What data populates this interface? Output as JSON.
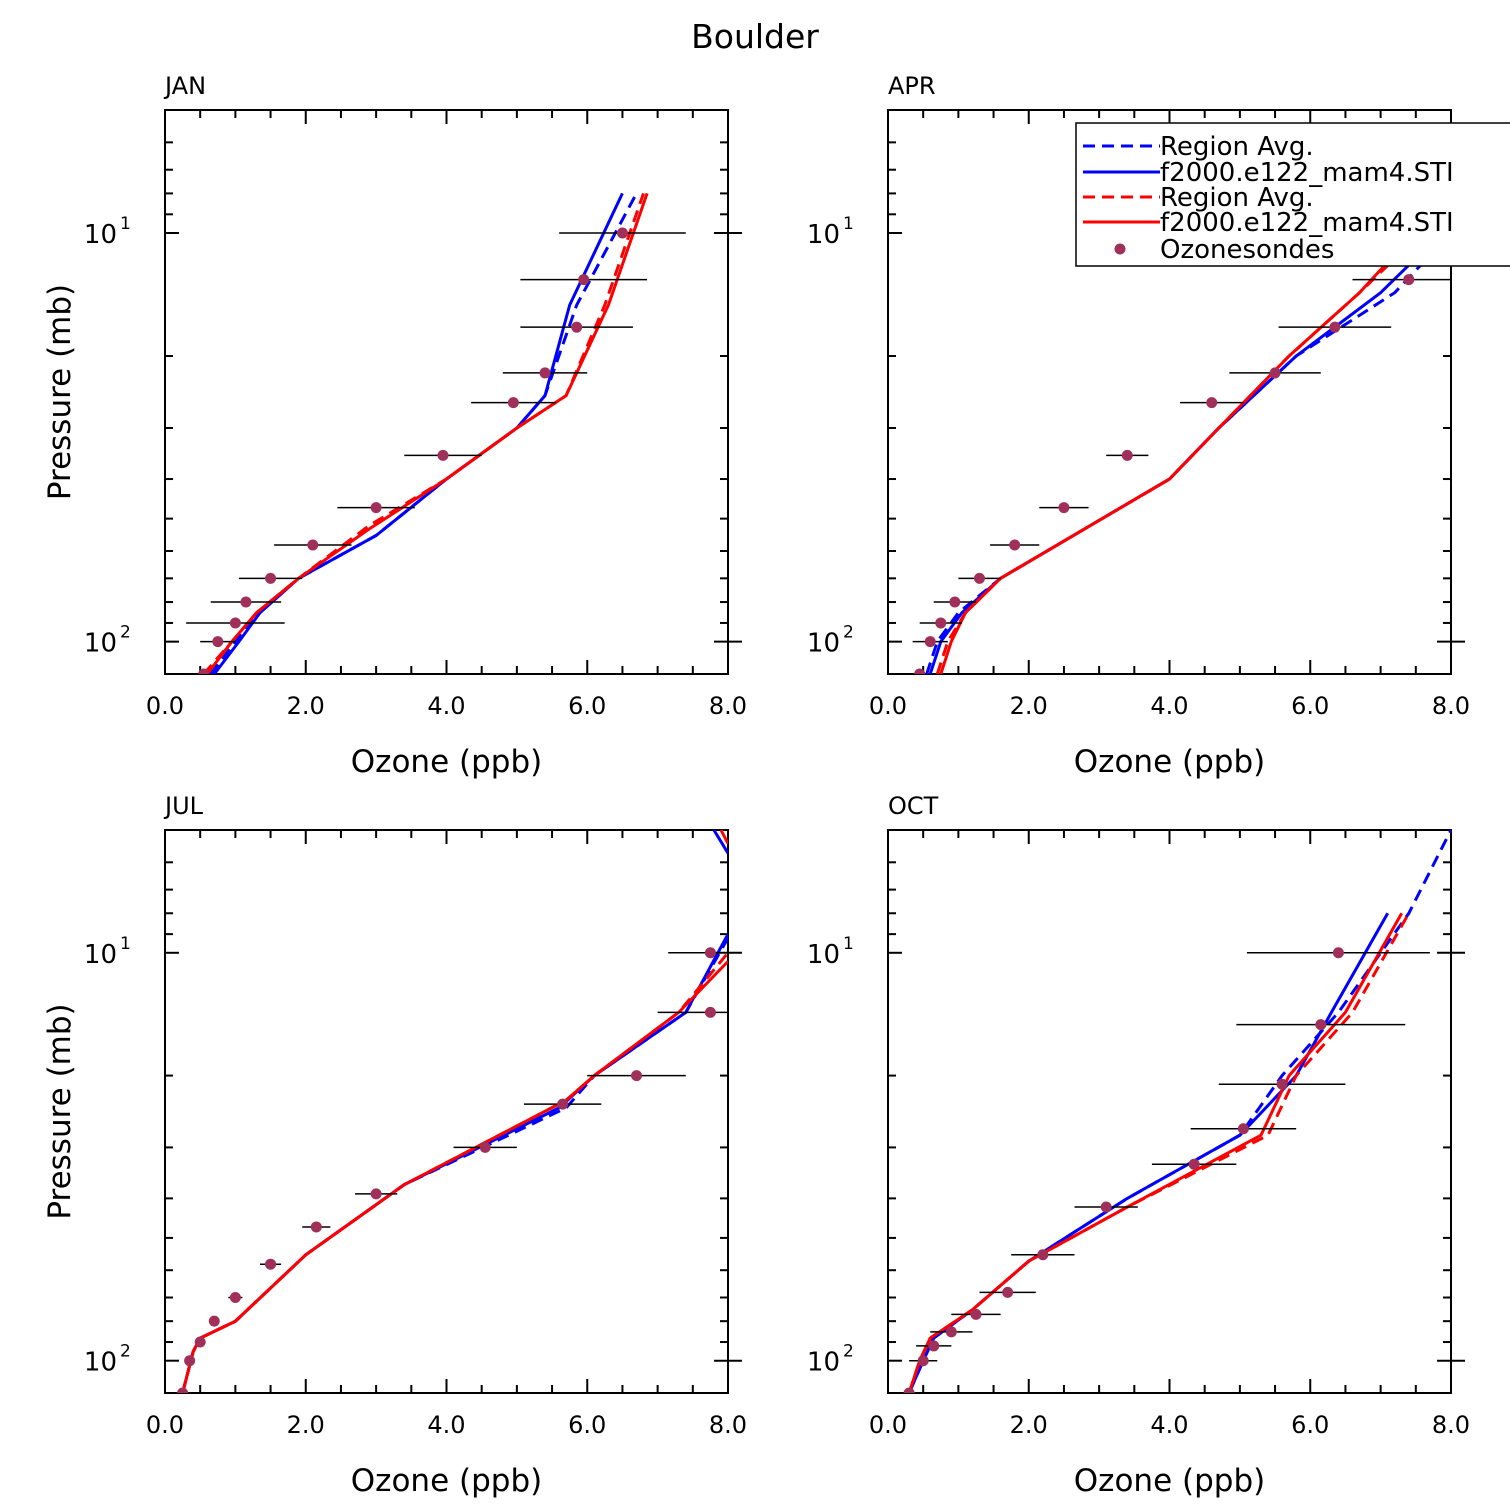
{
  "figure_title": "Boulder",
  "colors": {
    "model1": "#0000ff",
    "model2": "#ff0000",
    "obs": "#a0305a",
    "axis": "#000000"
  },
  "legend": {
    "entries": [
      {
        "label": "Region Avg.",
        "color": "#0000ff",
        "style": "dashed"
      },
      {
        "label": "f2000.e122_mam4.STI",
        "color": "#0000ff",
        "style": "solid"
      },
      {
        "label": "Region Avg.",
        "color": "#ff0000",
        "style": "dashed"
      },
      {
        "label": "f2000.e122_mam4.STI",
        "color": "#ff0000",
        "style": "solid"
      },
      {
        "label": "Ozonesondes",
        "color": "#a0305a",
        "style": "marker"
      }
    ]
  },
  "chart_data": [
    {
      "type": "line",
      "title": "JAN",
      "xlabel": "Ozone (ppb)",
      "ylabel": "Pressure (mb)",
      "xlim": [
        0,
        8
      ],
      "ylim": [
        120,
        5
      ],
      "yscale": "log",
      "xticks": [
        "0.0",
        "2.0",
        "4.0",
        "6.0",
        "8.0"
      ],
      "yticks": [
        {
          "base": "10",
          "exp": "1",
          "value": 10
        },
        {
          "base": "10",
          "exp": "2",
          "value": 100
        }
      ],
      "series": [
        {
          "name": "Region Avg.",
          "color": "#0000ff",
          "style": "dashed",
          "points": [
            [
              0.65,
              120
            ],
            [
              1.0,
              100
            ],
            [
              1.3,
              85
            ],
            [
              1.9,
              70
            ],
            [
              3.0,
              55
            ],
            [
              4.0,
              40
            ],
            [
              5.0,
              30
            ],
            [
              5.4,
              25
            ],
            [
              5.85,
              15
            ],
            [
              6.7,
              8
            ]
          ]
        },
        {
          "name": "f2000.e122_mam4.STI",
          "color": "#0000ff",
          "style": "solid",
          "points": [
            [
              0.7,
              120
            ],
            [
              1.05,
              100
            ],
            [
              1.35,
              85
            ],
            [
              1.9,
              70
            ],
            [
              3.0,
              55
            ],
            [
              4.0,
              40
            ],
            [
              5.0,
              30
            ],
            [
              5.4,
              25
            ],
            [
              5.75,
              15
            ],
            [
              6.5,
              8
            ]
          ]
        },
        {
          "name": "Region Avg.",
          "color": "#ff0000",
          "style": "dashed",
          "points": [
            [
              0.55,
              120
            ],
            [
              0.95,
              100
            ],
            [
              1.3,
              85
            ],
            [
              1.9,
              70
            ],
            [
              2.9,
              52
            ],
            [
              4.0,
              40
            ],
            [
              5.0,
              30
            ],
            [
              5.7,
              25
            ],
            [
              6.25,
              15
            ],
            [
              6.8,
              8
            ]
          ]
        },
        {
          "name": "f2000.e122_mam4.STI",
          "color": "#ff0000",
          "style": "solid",
          "points": [
            [
              0.6,
              120
            ],
            [
              0.95,
              100
            ],
            [
              1.3,
              85
            ],
            [
              1.9,
              70
            ],
            [
              2.9,
              53
            ],
            [
              4.0,
              40
            ],
            [
              5.0,
              30
            ],
            [
              5.7,
              25
            ],
            [
              6.3,
              15
            ],
            [
              6.85,
              8
            ]
          ]
        }
      ],
      "obs": [
        [
          0.55,
          120,
          0.05
        ],
        [
          0.75,
          100,
          0.25
        ],
        [
          1.0,
          90,
          0.7
        ],
        [
          1.15,
          80,
          0.5
        ],
        [
          1.5,
          70,
          0.45
        ],
        [
          2.1,
          58,
          0.55
        ],
        [
          3.0,
          47,
          0.55
        ],
        [
          3.95,
          35,
          0.55
        ],
        [
          4.95,
          26,
          0.6
        ],
        [
          5.4,
          22,
          0.6
        ],
        [
          5.85,
          17,
          0.8
        ],
        [
          5.95,
          13,
          0.9
        ],
        [
          6.5,
          10,
          0.9
        ]
      ]
    },
    {
      "type": "line",
      "title": "APR",
      "xlabel": "Ozone (ppb)",
      "ylabel": "",
      "xlim": [
        0,
        8
      ],
      "ylim": [
        120,
        5
      ],
      "yscale": "log",
      "xticks": [
        "0.0",
        "2.0",
        "4.0",
        "6.0",
        "8.0"
      ],
      "yticks": [
        {
          "base": "10",
          "exp": "1",
          "value": 10
        },
        {
          "base": "10",
          "exp": "2",
          "value": 100
        }
      ],
      "series": [
        {
          "name": "Region Avg.",
          "color": "#0000ff",
          "style": "dashed",
          "points": [
            [
              0.55,
              120
            ],
            [
              0.7,
              100
            ],
            [
              1.0,
              85
            ],
            [
              1.6,
              70
            ],
            [
              4.0,
              40
            ],
            [
              4.7,
              30
            ],
            [
              5.8,
              20
            ],
            [
              7.2,
              14
            ],
            [
              8.0,
              10
            ]
          ]
        },
        {
          "name": "f2000.e122_mam4.STI",
          "color": "#0000ff",
          "style": "solid",
          "points": [
            [
              0.6,
              120
            ],
            [
              0.75,
              100
            ],
            [
              1.05,
              85
            ],
            [
              1.6,
              70
            ],
            [
              4.0,
              40
            ],
            [
              4.7,
              30
            ],
            [
              5.8,
              20
            ],
            [
              7.0,
              14
            ],
            [
              8.0,
              9.5
            ]
          ]
        },
        {
          "name": "Region Avg.",
          "color": "#ff0000",
          "style": "dashed",
          "points": [
            [
              0.7,
              120
            ],
            [
              0.85,
              100
            ],
            [
              1.1,
              85
            ],
            [
              1.6,
              70
            ],
            [
              4.0,
              40
            ],
            [
              4.7,
              30
            ],
            [
              5.7,
              20
            ],
            [
              6.7,
              14
            ],
            [
              8.0,
              8.5
            ]
          ]
        },
        {
          "name": "f2000.e122_mam4.STI",
          "color": "#ff0000",
          "style": "solid",
          "points": [
            [
              0.75,
              120
            ],
            [
              0.9,
              100
            ],
            [
              1.1,
              85
            ],
            [
              1.6,
              70
            ],
            [
              4.0,
              40
            ],
            [
              4.7,
              30
            ],
            [
              5.7,
              20
            ],
            [
              6.7,
              14
            ],
            [
              8.0,
              8
            ]
          ]
        }
      ],
      "obs": [
        [
          0.45,
          120,
          0.05
        ],
        [
          0.6,
          100,
          0.25
        ],
        [
          0.75,
          90,
          0.3
        ],
        [
          0.95,
          80,
          0.3
        ],
        [
          1.3,
          70,
          0.3
        ],
        [
          1.8,
          58,
          0.35
        ],
        [
          2.5,
          47,
          0.35
        ],
        [
          3.4,
          35,
          0.3
        ],
        [
          4.6,
          26,
          0.45
        ],
        [
          5.5,
          22,
          0.65
        ],
        [
          6.35,
          17,
          0.8
        ],
        [
          7.4,
          13,
          0.8
        ]
      ]
    },
    {
      "type": "line",
      "title": "JUL",
      "xlabel": "Ozone (ppb)",
      "ylabel": "Pressure (mb)",
      "xlim": [
        0,
        8
      ],
      "ylim": [
        120,
        5
      ],
      "yscale": "log",
      "xticks": [
        "0.0",
        "2.0",
        "4.0",
        "6.0",
        "8.0"
      ],
      "yticks": [
        {
          "base": "10",
          "exp": "1",
          "value": 10
        },
        {
          "base": "10",
          "exp": "2",
          "value": 100
        }
      ],
      "series": [
        {
          "name": "Region Avg.",
          "color": "#0000ff",
          "style": "dashed",
          "points": [
            [
              0.25,
              120
            ],
            [
              0.4,
              95
            ],
            [
              0.5,
              88
            ],
            [
              1.0,
              80
            ],
            [
              2.0,
              55
            ],
            [
              3.4,
              37
            ],
            [
              5.7,
              24
            ],
            [
              6.1,
              20
            ],
            [
              7.4,
              14
            ],
            [
              8.0,
              9.2
            ]
          ]
        },
        {
          "name": "f2000.e122_mam4.STI",
          "color": "#0000ff",
          "style": "solid",
          "points": [
            [
              0.25,
              120
            ],
            [
              0.4,
              95
            ],
            [
              0.5,
              88
            ],
            [
              1.0,
              80
            ],
            [
              2.0,
              55
            ],
            [
              3.4,
              37
            ],
            [
              5.6,
              24
            ],
            [
              6.1,
              20
            ],
            [
              7.4,
              14
            ],
            [
              8.0,
              9
            ]
          ]
        },
        {
          "name": "Region Avg.",
          "color": "#ff0000",
          "style": "dashed",
          "points": [
            [
              0.25,
              120
            ],
            [
              0.4,
              95
            ],
            [
              0.5,
              88
            ],
            [
              1.0,
              80
            ],
            [
              2.0,
              55
            ],
            [
              3.4,
              37
            ],
            [
              5.7,
              23
            ],
            [
              6.1,
              20
            ],
            [
              7.3,
              14
            ],
            [
              8.0,
              10
            ]
          ]
        },
        {
          "name": "f2000.e122_mam4.STI",
          "color": "#ff0000",
          "style": "solid",
          "points": [
            [
              0.25,
              120
            ],
            [
              0.4,
              95
            ],
            [
              0.5,
              88
            ],
            [
              1.0,
              80
            ],
            [
              2.0,
              55
            ],
            [
              3.4,
              37
            ],
            [
              5.7,
              23
            ],
            [
              6.1,
              20
            ],
            [
              7.3,
              14
            ],
            [
              8.0,
              10.5
            ]
          ]
        }
      ],
      "obs": [
        [
          0.25,
          120,
          0.02
        ],
        [
          0.35,
          100,
          0.05
        ],
        [
          0.5,
          90,
          0.05
        ],
        [
          0.7,
          80,
          0.05
        ],
        [
          1.0,
          70,
          0.1
        ],
        [
          1.5,
          58,
          0.15
        ],
        [
          2.15,
          47,
          0.2
        ],
        [
          3.0,
          39,
          0.3
        ],
        [
          4.55,
          30,
          0.45
        ],
        [
          5.65,
          23.5,
          0.55
        ],
        [
          6.7,
          20,
          0.7
        ],
        [
          7.75,
          14,
          0.75
        ],
        [
          7.75,
          10,
          0.6
        ]
      ],
      "top_segments": [
        {
          "color": "#0000ff",
          "points": [
            [
              7.8,
              5
            ],
            [
              8.0,
              5.7
            ]
          ]
        },
        {
          "color": "#ff0000",
          "points": [
            [
              7.9,
              5
            ],
            [
              8.0,
              5.4
            ]
          ]
        }
      ]
    },
    {
      "type": "line",
      "title": "OCT",
      "xlabel": "Ozone (ppb)",
      "ylabel": "",
      "xlim": [
        0,
        8
      ],
      "ylim": [
        120,
        5
      ],
      "yscale": "log",
      "xticks": [
        "0.0",
        "2.0",
        "4.0",
        "6.0",
        "8.0"
      ],
      "yticks": [
        {
          "base": "10",
          "exp": "1",
          "value": 10
        },
        {
          "base": "10",
          "exp": "2",
          "value": 100
        }
      ],
      "series": [
        {
          "name": "Region Avg.",
          "color": "#0000ff",
          "style": "dashed",
          "points": [
            [
              0.3,
              120
            ],
            [
              0.5,
              100
            ],
            [
              0.65,
              88
            ],
            [
              1.2,
              75
            ],
            [
              2.0,
              57
            ],
            [
              3.4,
              40
            ],
            [
              5.0,
              28
            ],
            [
              5.6,
              20
            ],
            [
              6.4,
              14
            ],
            [
              7.4,
              8
            ],
            [
              8.0,
              5
            ]
          ]
        },
        {
          "name": "f2000.e122_mam4.STI",
          "color": "#0000ff",
          "style": "solid",
          "points": [
            [
              0.3,
              120
            ],
            [
              0.5,
              100
            ],
            [
              0.65,
              88
            ],
            [
              1.2,
              75
            ],
            [
              2.0,
              57
            ],
            [
              3.4,
              40
            ],
            [
              5.0,
              28
            ],
            [
              5.8,
              20
            ],
            [
              6.3,
              14
            ],
            [
              7.1,
              8
            ]
          ]
        },
        {
          "name": "Region Avg.",
          "color": "#ff0000",
          "style": "dashed",
          "points": [
            [
              0.3,
              120
            ],
            [
              0.45,
              100
            ],
            [
              0.6,
              88
            ],
            [
              1.2,
              75
            ],
            [
              2.0,
              57
            ],
            [
              3.4,
              42
            ],
            [
              5.4,
              28
            ],
            [
              5.8,
              20
            ],
            [
              6.6,
              14
            ],
            [
              7.4,
              8
            ]
          ]
        },
        {
          "name": "f2000.e122_mam4.STI",
          "color": "#ff0000",
          "style": "solid",
          "points": [
            [
              0.3,
              120
            ],
            [
              0.45,
              100
            ],
            [
              0.6,
              88
            ],
            [
              1.2,
              75
            ],
            [
              2.0,
              57
            ],
            [
              3.4,
              42
            ],
            [
              5.3,
              28
            ],
            [
              5.7,
              20
            ],
            [
              6.5,
              14
            ],
            [
              7.3,
              8
            ]
          ]
        }
      ],
      "obs": [
        [
          0.3,
          120,
          0.05
        ],
        [
          0.5,
          100,
          0.2
        ],
        [
          0.65,
          92,
          0.25
        ],
        [
          0.9,
          85,
          0.3
        ],
        [
          1.25,
          77,
          0.35
        ],
        [
          1.7,
          68,
          0.4
        ],
        [
          2.2,
          55,
          0.45
        ],
        [
          3.1,
          42,
          0.45
        ],
        [
          4.35,
          33,
          0.6
        ],
        [
          5.05,
          27,
          0.75
        ],
        [
          5.6,
          21,
          0.9
        ],
        [
          6.15,
          15,
          1.2
        ],
        [
          6.4,
          10,
          1.3
        ]
      ]
    }
  ]
}
